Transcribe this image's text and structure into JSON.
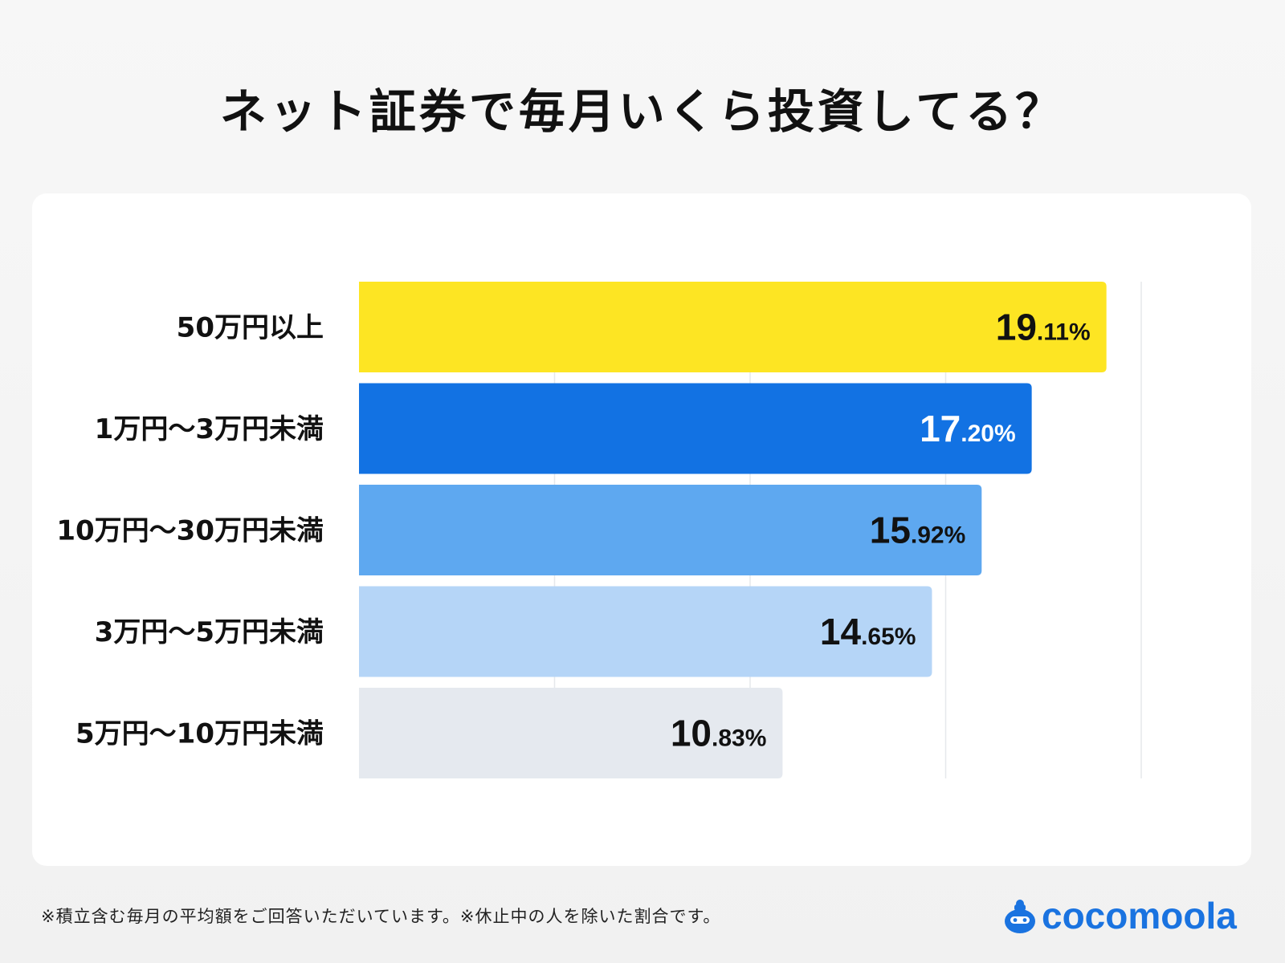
{
  "title": "ネット証券で毎月いくら投資してる？",
  "footnote": "※積立含む毎月の平均額をご回答いただいています。※休止中の人を除いた割合です。",
  "logo": {
    "text": "cocomoola",
    "icon": "money-bag-mascot-icon",
    "color": "#1A73E0"
  },
  "chart_data": {
    "type": "bar",
    "orientation": "horizontal",
    "categories": [
      "50万円以上",
      "1万円〜3万円未満",
      "10万円〜30万円未満",
      "3万円〜5万円未満",
      "5万円〜10万円未満"
    ],
    "values": [
      19.11,
      17.2,
      15.92,
      14.65,
      10.83
    ],
    "value_labels": [
      {
        "int": "19",
        "dec": ".11%"
      },
      {
        "int": "17",
        "dec": ".20%"
      },
      {
        "int": "15",
        "dec": ".92%"
      },
      {
        "int": "14",
        "dec": ".65%"
      },
      {
        "int": "10",
        "dec": ".83%"
      }
    ],
    "colors": [
      "#FDE523",
      "#1272E3",
      "#5EA8F0",
      "#B5D5F7",
      "#E5E9EF"
    ],
    "label_colors": [
      "#111111",
      "#FFFFFF",
      "#111111",
      "#111111",
      "#111111"
    ],
    "xlim": [
      0,
      20
    ],
    "gridlines": [
      5,
      10,
      15,
      20
    ],
    "grid": true,
    "xlabel": "",
    "ylabel": ""
  }
}
